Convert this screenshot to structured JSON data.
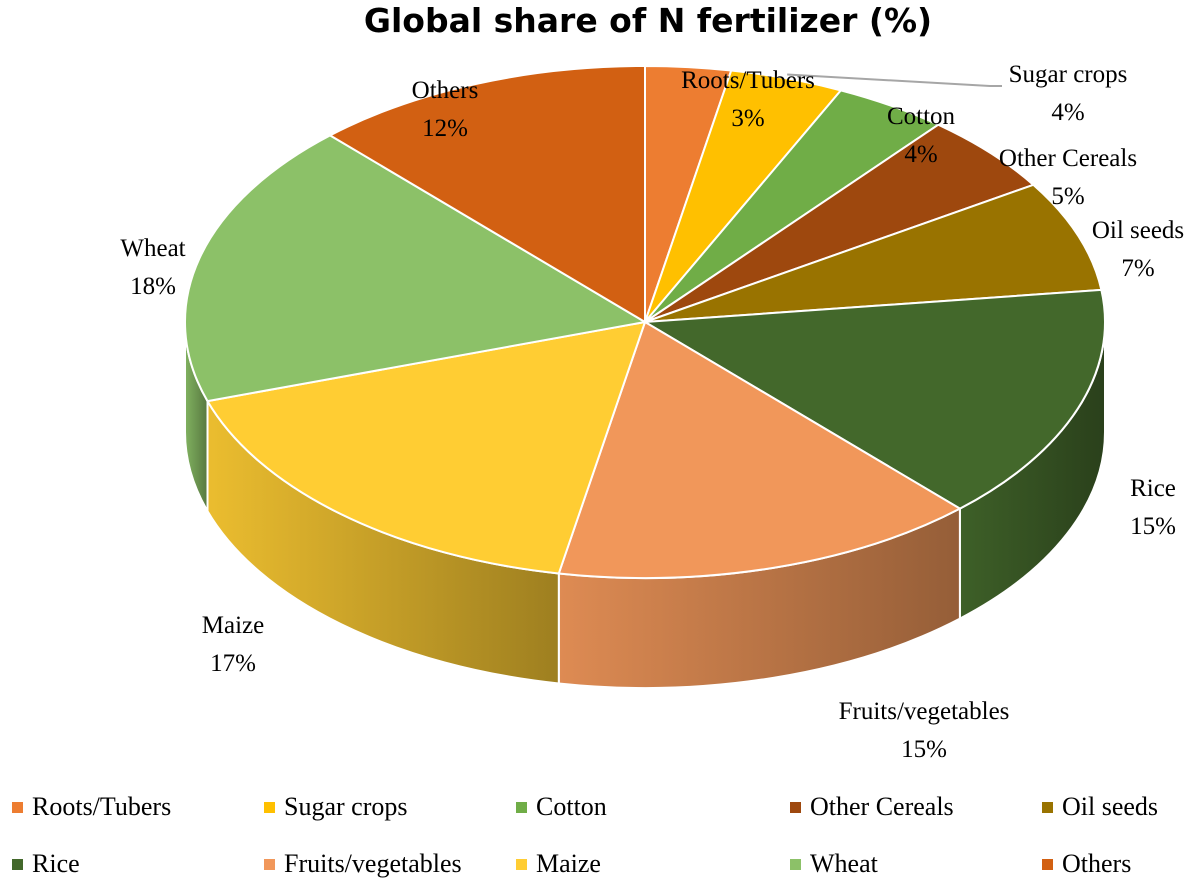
{
  "chart_data": {
    "type": "pie",
    "title": "Global share of N fertilizer (%)",
    "categories": [
      "Roots/Tubers",
      "Sugar crops",
      "Cotton",
      "Other Cereals",
      "Oil seeds",
      "Rice",
      "Fruits/vegetables",
      "Maize",
      "Wheat",
      "Others"
    ],
    "values": [
      3,
      4,
      4,
      5,
      7,
      15,
      15,
      17,
      18,
      12
    ],
    "value_labels": [
      "3%",
      "4%",
      "4%",
      "5%",
      "7%",
      "15%",
      "15%",
      "17%",
      "18%",
      "12%"
    ],
    "colors": [
      "#ED7D31",
      "#FFC000",
      "#70AD47",
      "#9E480E",
      "#997300",
      "#43682B",
      "#F1975A",
      "#FFCD33",
      "#8CC168",
      "#D26012"
    ],
    "legend_position": "bottom",
    "three_d": true
  }
}
